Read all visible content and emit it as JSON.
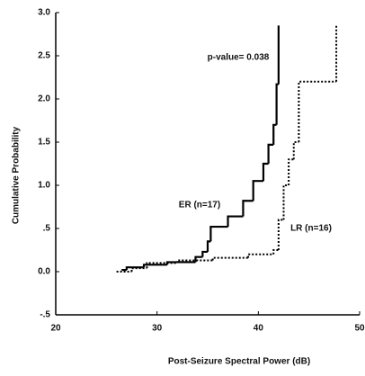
{
  "chart_data": {
    "type": "step",
    "xlabel": "Post-Seizure Spectral Power (dB)",
    "ylabel": "Cumulative Probability",
    "annotations": [
      "p-value= 0.038",
      "ER (n=17)",
      "LR (n=16)"
    ],
    "xlim": [
      20,
      50
    ],
    "xticks": [
      20,
      30,
      40,
      50
    ],
    "ylim": [
      -0.5,
      3.0
    ],
    "yticks": [
      {
        "value": -0.5,
        "label": "-.5"
      },
      {
        "value": 0,
        "label": "0.0"
      },
      {
        "value": 0.5,
        "label": ".5"
      },
      {
        "value": 1.0,
        "label": "1.0"
      },
      1.5,
      {
        "value": 2.0,
        "label": "2.0"
      },
      2.5,
      {
        "value": 3.0,
        "label": "3.0"
      }
    ],
    "series": [
      {
        "name": "ER",
        "color": "#000000",
        "style": "solid",
        "x": [
          26.5,
          27,
          28.7,
          31,
          33.8,
          34.5,
          35,
          35.3,
          37,
          38.5,
          39.5,
          40.5,
          41,
          41.5,
          41.8,
          42
        ],
        "values": [
          0.02,
          0.05,
          0.08,
          0.11,
          0.17,
          0.23,
          0.35,
          0.52,
          0.64,
          0.82,
          1.05,
          1.25,
          1.47,
          1.7,
          2.17,
          2.85
        ]
      },
      {
        "name": "LR",
        "color": "#000000",
        "style": "dotted",
        "x": [
          26,
          27.5,
          29,
          32,
          35.5,
          39,
          41.5,
          42,
          42.5,
          43,
          43.5,
          44,
          47.7
        ],
        "values": [
          0,
          0.04,
          0.1,
          0.13,
          0.16,
          0.2,
          0.25,
          0.6,
          1.0,
          1.3,
          1.5,
          2.2,
          2.85
        ]
      }
    ]
  }
}
